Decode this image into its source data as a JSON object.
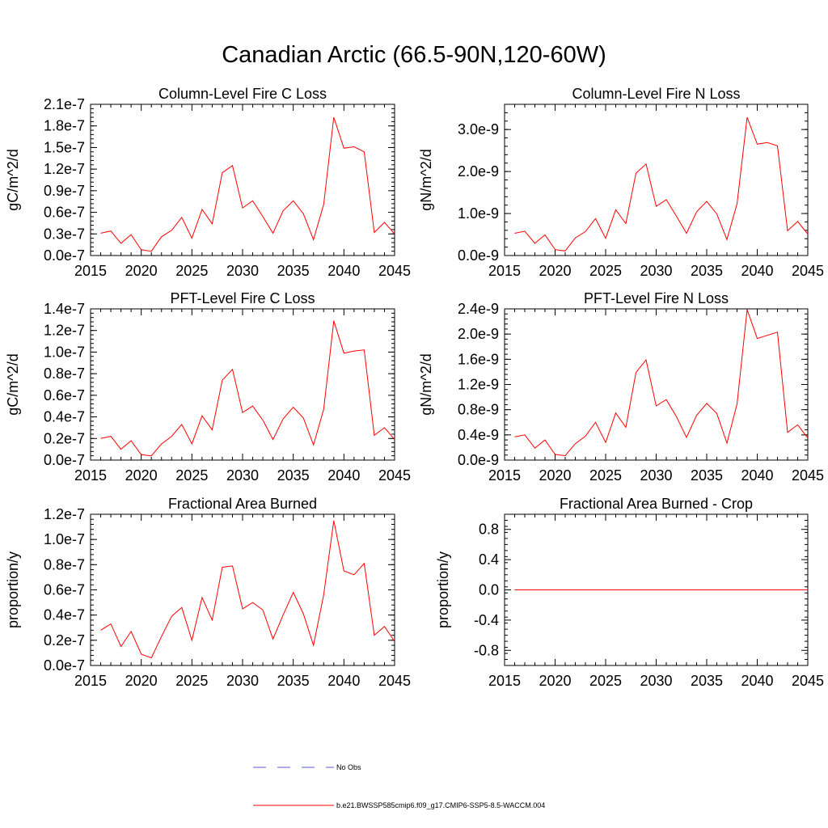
{
  "main_title": "Canadian Arctic (66.5-90N,120-60W)",
  "colors": {
    "series": "#ff0000",
    "obs": "#5b5bd6",
    "axis": "#000000"
  },
  "legend": [
    {
      "label": "No Obs",
      "style": "dashed",
      "color": "#5b5bd6"
    },
    {
      "label": "b.e21.BWSSP585cmip6.f09_g17.CMIP6-SSP5-8.5-WACCM.004",
      "style": "solid",
      "color": "#ff0000"
    }
  ],
  "chart_data": [
    {
      "type": "line",
      "title": "Column-Level Fire C Loss",
      "ylabel": "gC/m^2/d",
      "xlim": [
        2015,
        2045
      ],
      "xticks": [
        2015,
        2020,
        2025,
        2030,
        2035,
        2040,
        2045
      ],
      "ylim": [
        0,
        2.1e-07
      ],
      "yticks": [
        0,
        3e-08,
        6e-08,
        9e-08,
        1.2e-07,
        1.5e-07,
        1.8e-07,
        2.1e-07
      ],
      "ytick_labels": [
        "0.0e-7",
        "0.3e-7",
        "0.6e-7",
        "0.9e-7",
        "1.2e-7",
        "1.5e-7",
        "1.8e-7",
        "2.1e-7"
      ],
      "x": [
        2016,
        2017,
        2018,
        2019,
        2020,
        2021,
        2022,
        2023,
        2024,
        2025,
        2026,
        2027,
        2028,
        2029,
        2030,
        2031,
        2032,
        2033,
        2034,
        2035,
        2036,
        2037,
        2038,
        2039,
        2040,
        2041,
        2042,
        2043,
        2044,
        2045
      ],
      "series": [
        {
          "values": [
            3.1e-08,
            3.4e-08,
            1.7e-08,
            2.9e-08,
            8e-09,
            6e-09,
            2.6e-08,
            3.5e-08,
            5.3e-08,
            2.4e-08,
            6.4e-08,
            4.4e-08,
            1.15e-07,
            1.25e-07,
            6.6e-08,
            7.6e-08,
            5.4e-08,
            3.1e-08,
            6.2e-08,
            7.6e-08,
            5.8e-08,
            2.2e-08,
            7.1e-08,
            1.92e-07,
            1.49e-07,
            1.51e-07,
            1.44e-07,
            3.2e-08,
            4.6e-08,
            3e-08
          ]
        }
      ]
    },
    {
      "type": "line",
      "title": "Column-Level Fire N Loss",
      "ylabel": "gN/m^2/d",
      "xlim": [
        2015,
        2045
      ],
      "xticks": [
        2015,
        2020,
        2025,
        2030,
        2035,
        2040,
        2045
      ],
      "ylim": [
        0,
        3.6e-09
      ],
      "yticks": [
        0,
        1e-09,
        2e-09,
        3e-09
      ],
      "ytick_labels": [
        "0.0e-9",
        "1.0e-9",
        "2.0e-9",
        "3.0e-9"
      ],
      "x": [
        2016,
        2017,
        2018,
        2019,
        2020,
        2021,
        2022,
        2023,
        2024,
        2025,
        2026,
        2027,
        2028,
        2029,
        2030,
        2031,
        2032,
        2033,
        2034,
        2035,
        2036,
        2037,
        2038,
        2039,
        2040,
        2041,
        2042,
        2043,
        2044,
        2045
      ],
      "series": [
        {
          "values": [
            5.3e-10,
            5.8e-10,
            2.9e-10,
            4.9e-10,
            1.4e-10,
            1.1e-10,
            4.2e-10,
            5.7e-10,
            8.8e-10,
            4.1e-10,
            1.09e-09,
            7.6e-10,
            1.96e-09,
            2.18e-09,
            1.17e-09,
            1.33e-09,
            9.4e-10,
            5.3e-10,
            1.04e-09,
            1.29e-09,
            9.9e-10,
            3.8e-10,
            1.23e-09,
            3.29e-09,
            2.65e-09,
            2.69e-09,
            2.61e-09,
            5.9e-10,
            8.1e-10,
            5.1e-10
          ]
        }
      ]
    },
    {
      "type": "line",
      "title": "PFT-Level Fire C Loss",
      "ylabel": "gC/m^2/d",
      "xlim": [
        2015,
        2045
      ],
      "xticks": [
        2015,
        2020,
        2025,
        2030,
        2035,
        2040,
        2045
      ],
      "ylim": [
        0,
        1.4e-07
      ],
      "yticks": [
        0,
        2e-08,
        4e-08,
        6e-08,
        8e-08,
        1e-07,
        1.2e-07,
        1.4e-07
      ],
      "ytick_labels": [
        "0.0e-7",
        "0.2e-7",
        "0.4e-7",
        "0.6e-7",
        "0.8e-7",
        "1.0e-7",
        "1.2e-7",
        "1.4e-7"
      ],
      "x": [
        2016,
        2017,
        2018,
        2019,
        2020,
        2021,
        2022,
        2023,
        2024,
        2025,
        2026,
        2027,
        2028,
        2029,
        2030,
        2031,
        2032,
        2033,
        2034,
        2035,
        2036,
        2037,
        2038,
        2039,
        2040,
        2041,
        2042,
        2043,
        2044,
        2045
      ],
      "series": [
        {
          "values": [
            2e-08,
            2.2e-08,
            1e-08,
            1.8e-08,
            5e-09,
            4e-09,
            1.5e-08,
            2.2e-08,
            3.3e-08,
            1.5e-08,
            4.1e-08,
            2.8e-08,
            7.4e-08,
            8.4e-08,
            4.4e-08,
            5e-08,
            3.7e-08,
            1.9e-08,
            3.8e-08,
            4.9e-08,
            3.9e-08,
            1.4e-08,
            4.7e-08,
            1.29e-07,
            9.9e-08,
            1.01e-07,
            1.02e-07,
            2.3e-08,
            3e-08,
            1.9e-08
          ]
        }
      ]
    },
    {
      "type": "line",
      "title": "PFT-Level Fire N Loss",
      "ylabel": "gN/m^2/d",
      "xlim": [
        2015,
        2045
      ],
      "xticks": [
        2015,
        2020,
        2025,
        2030,
        2035,
        2040,
        2045
      ],
      "ylim": [
        0,
        2.4e-09
      ],
      "yticks": [
        0,
        4e-10,
        8e-10,
        1.2e-09,
        1.6e-09,
        2e-09,
        2.4e-09
      ],
      "ytick_labels": [
        "0.0e-9",
        "0.4e-9",
        "0.8e-9",
        "1.2e-9",
        "1.6e-9",
        "2.0e-9",
        "2.4e-9"
      ],
      "x": [
        2016,
        2017,
        2018,
        2019,
        2020,
        2021,
        2022,
        2023,
        2024,
        2025,
        2026,
        2027,
        2028,
        2029,
        2030,
        2031,
        2032,
        2033,
        2034,
        2035,
        2036,
        2037,
        2038,
        2039,
        2040,
        2041,
        2042,
        2043,
        2044,
        2045
      ],
      "series": [
        {
          "values": [
            3.7e-10,
            4e-10,
            1.9e-10,
            3.2e-10,
            9e-11,
            7e-11,
            2.6e-10,
            3.8e-10,
            6e-10,
            2.8e-10,
            7.5e-10,
            5.2e-10,
            1.39e-09,
            1.59e-09,
            8.6e-10,
            9.6e-10,
            6.9e-10,
            3.6e-10,
            7.1e-10,
            9e-10,
            7.4e-10,
            2.7e-10,
            8.9e-10,
            2.39e-09,
            1.93e-09,
            1.98e-09,
            2.03e-09,
            4.4e-10,
            5.6e-10,
            3.5e-10
          ]
        }
      ]
    },
    {
      "type": "line",
      "title": "Fractional Area Burned",
      "ylabel": "proportion/y",
      "xlim": [
        2015,
        2045
      ],
      "xticks": [
        2015,
        2020,
        2025,
        2030,
        2035,
        2040,
        2045
      ],
      "ylim": [
        0,
        1.2e-07
      ],
      "yticks": [
        0,
        2e-08,
        4e-08,
        6e-08,
        8e-08,
        1e-07,
        1.2e-07
      ],
      "ytick_labels": [
        "0.0e-7",
        "0.2e-7",
        "0.4e-7",
        "0.6e-7",
        "0.8e-7",
        "1.0e-7",
        "1.2e-7"
      ],
      "x": [
        2016,
        2017,
        2018,
        2019,
        2020,
        2021,
        2022,
        2023,
        2024,
        2025,
        2026,
        2027,
        2028,
        2029,
        2030,
        2031,
        2032,
        2033,
        2034,
        2035,
        2036,
        2037,
        2038,
        2039,
        2040,
        2041,
        2042,
        2043,
        2044,
        2045
      ],
      "series": [
        {
          "values": [
            2.8e-08,
            3.3e-08,
            1.5e-08,
            2.7e-08,
            9e-09,
            6e-09,
            2.3e-08,
            3.9e-08,
            4.6e-08,
            2e-08,
            5.4e-08,
            3.6e-08,
            7.8e-08,
            7.9e-08,
            4.5e-08,
            5e-08,
            4.4e-08,
            2.1e-08,
            4e-08,
            5.8e-08,
            4.1e-08,
            1.6e-08,
            5.6e-08,
            1.15e-07,
            7.5e-08,
            7.2e-08,
            8.1e-08,
            2.4e-08,
            3.1e-08,
            1.9e-08
          ]
        }
      ]
    },
    {
      "type": "line",
      "title": "Fractional Area Burned - Crop",
      "ylabel": "proportion/y",
      "xlim": [
        2015,
        2045
      ],
      "xticks": [
        2015,
        2020,
        2025,
        2030,
        2035,
        2040,
        2045
      ],
      "ylim": [
        -1,
        1
      ],
      "yticks": [
        -0.8,
        -0.4,
        0,
        0.4,
        0.8
      ],
      "ytick_labels": [
        "-0.8",
        "-0.4",
        "0.0",
        "0.4",
        "0.8"
      ],
      "x": [
        2016,
        2017,
        2018,
        2019,
        2020,
        2021,
        2022,
        2023,
        2024,
        2025,
        2026,
        2027,
        2028,
        2029,
        2030,
        2031,
        2032,
        2033,
        2034,
        2035,
        2036,
        2037,
        2038,
        2039,
        2040,
        2041,
        2042,
        2043,
        2044,
        2045
      ],
      "series": [
        {
          "values": [
            0,
            0,
            0,
            0,
            0,
            0,
            0,
            0,
            0,
            0,
            0,
            0,
            0,
            0,
            0,
            0,
            0,
            0,
            0,
            0,
            0,
            0,
            0,
            0,
            0,
            0,
            0,
            0,
            0,
            0
          ]
        }
      ]
    }
  ]
}
